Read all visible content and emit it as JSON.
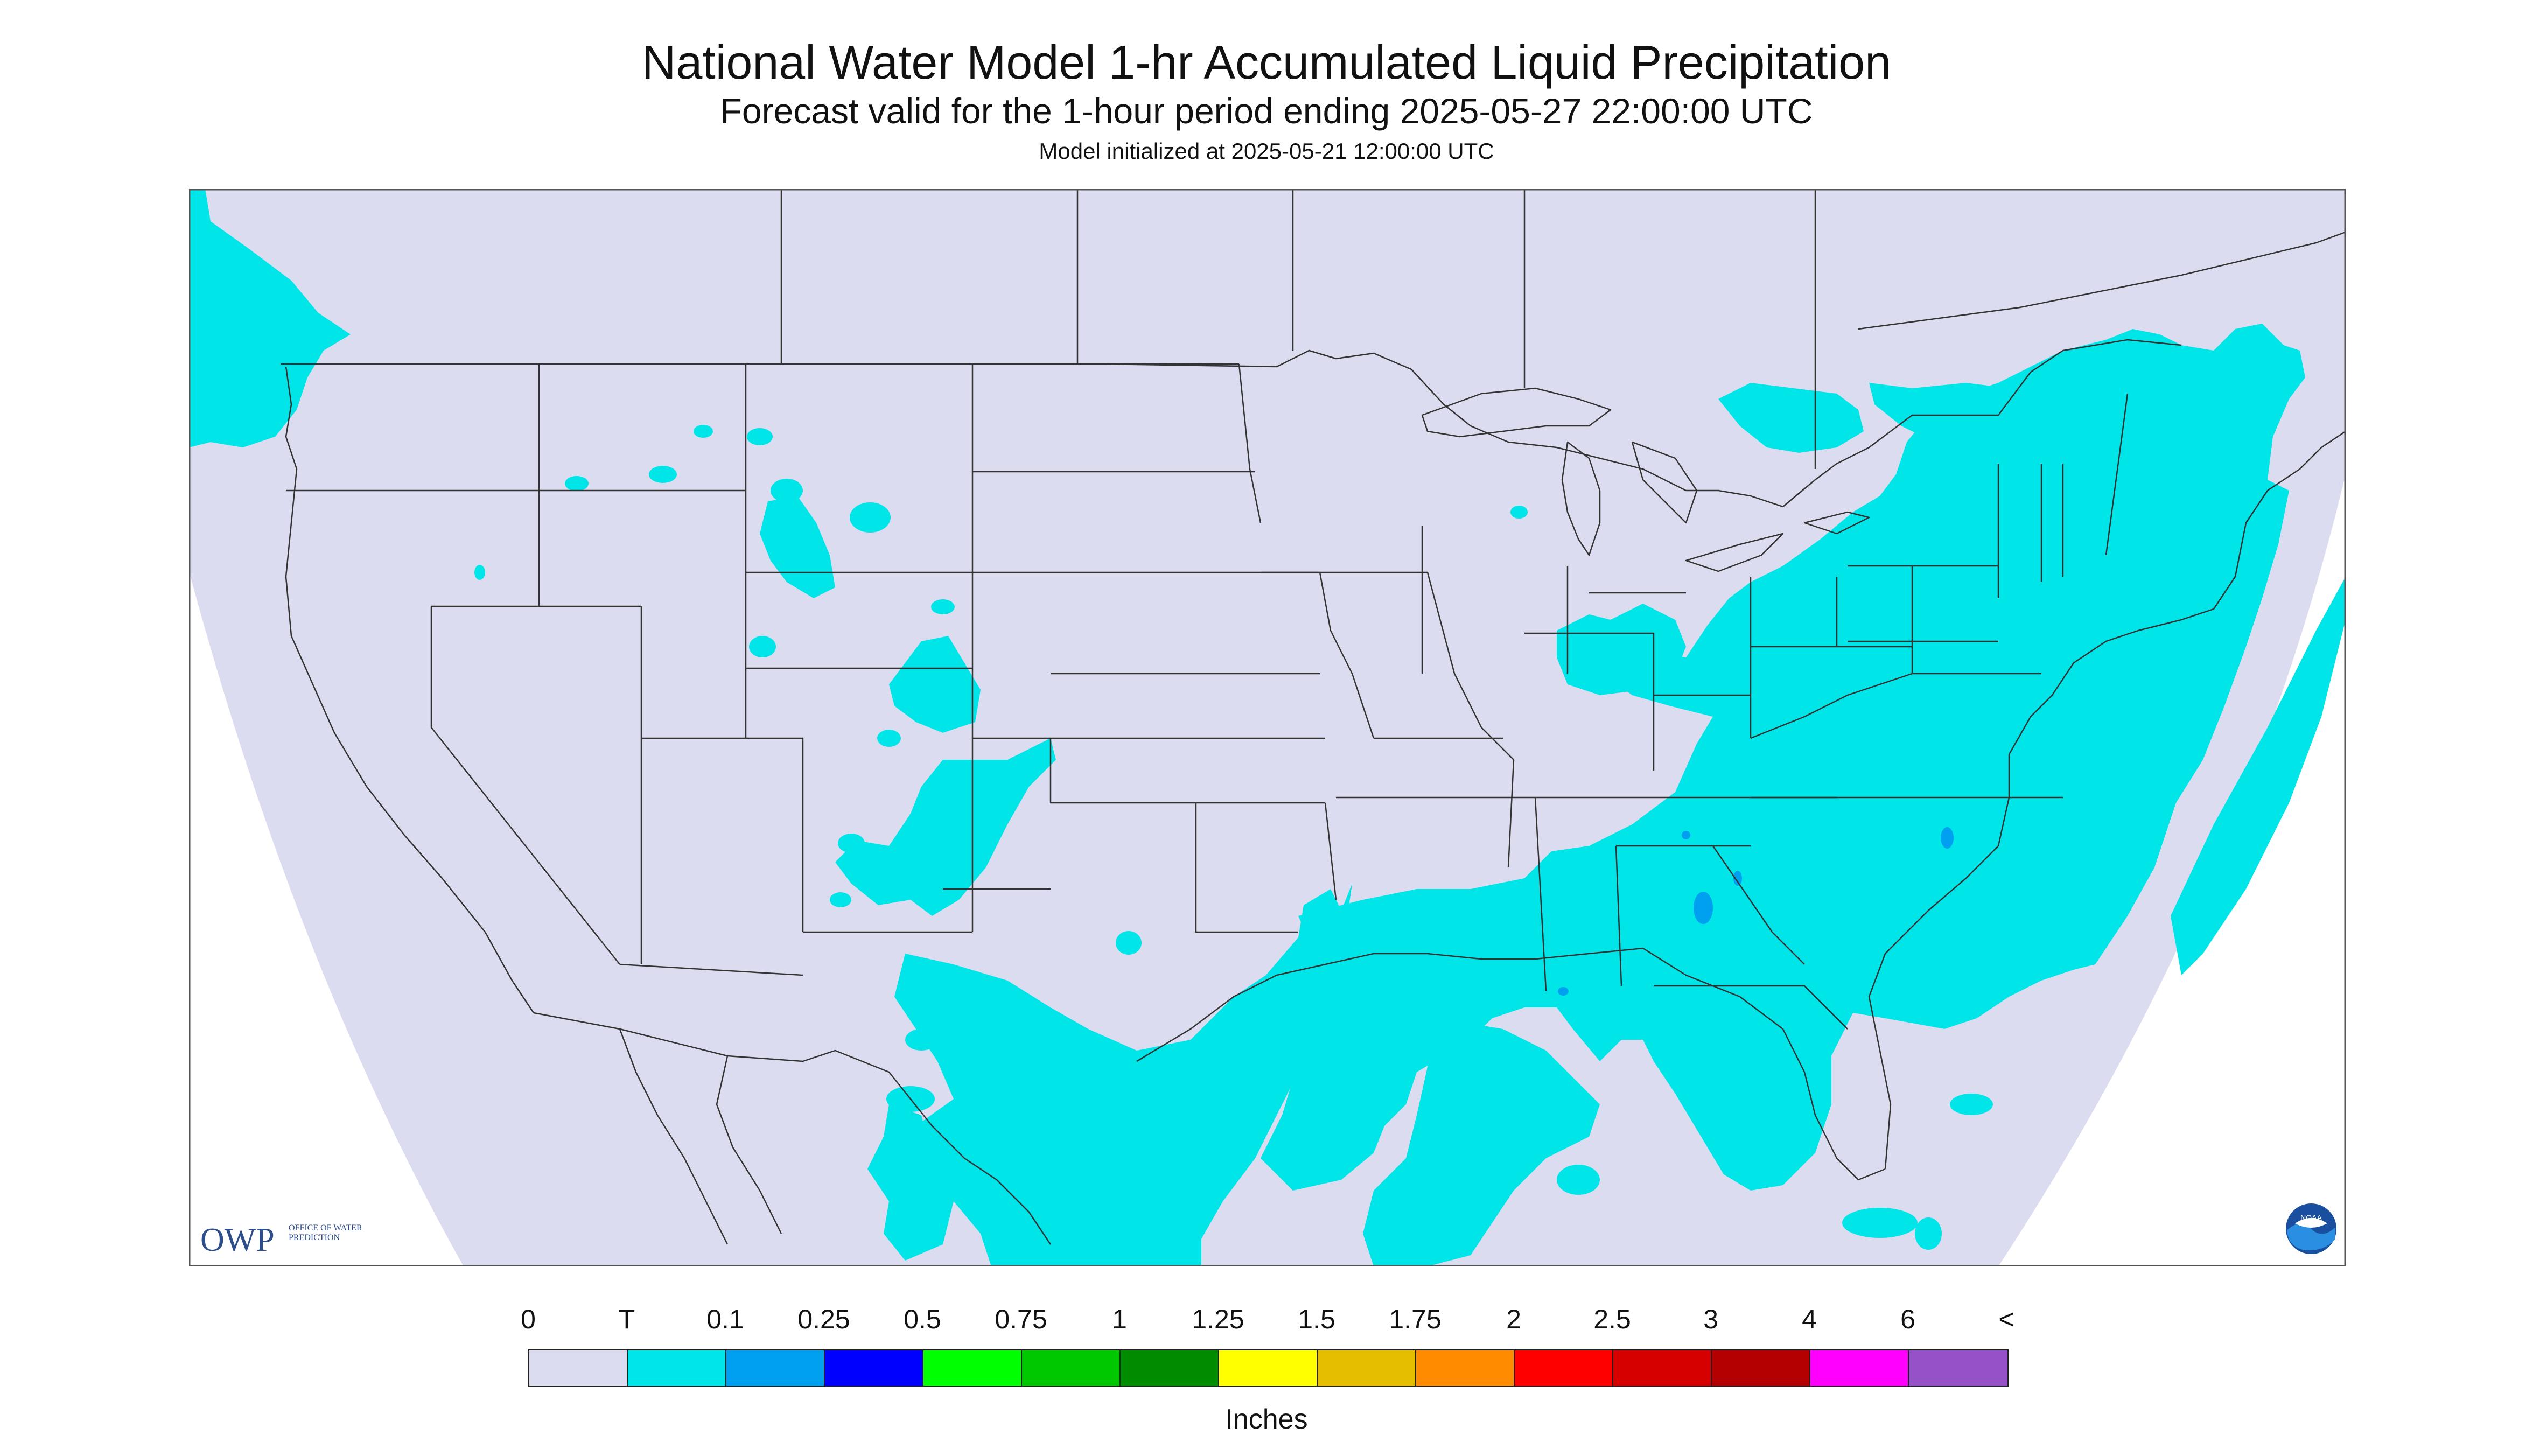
{
  "header": {
    "title": "National Water Model 1-hr Accumulated Liquid Precipitation",
    "subtitle": "Forecast valid for the 1-hour period ending 2025-05-27 22:00:00 UTC",
    "init": "Model initialized at 2025-05-21 12:00:00 UTC"
  },
  "logos": {
    "owp_text": "OWP",
    "owp_sub": "OFFICE OF WATER PREDICTION",
    "noaa_text": "NOAA"
  },
  "legend": {
    "labels": [
      "0",
      "T",
      "0.1",
      "0.25",
      "0.5",
      "0.75",
      "1",
      "1.25",
      "1.5",
      "1.75",
      "2",
      "2.5",
      "3",
      "4",
      "6",
      "<"
    ],
    "colors": [
      "#dcdcf0",
      "#00e5e8",
      "#00a0f0",
      "#0000ff",
      "#00ff00",
      "#00c800",
      "#008c00",
      "#ffff00",
      "#e6be00",
      "#ff8c00",
      "#ff0000",
      "#d70000",
      "#b40000",
      "#ff00ff",
      "#9650c8"
    ],
    "units": "Inches"
  },
  "map": {
    "background_color": "#dcdcf0",
    "outside_color": "#ffffff",
    "precip_color": "#00e5e8",
    "heavy_color": "#00a0f0",
    "boundary_color": "#333333"
  }
}
